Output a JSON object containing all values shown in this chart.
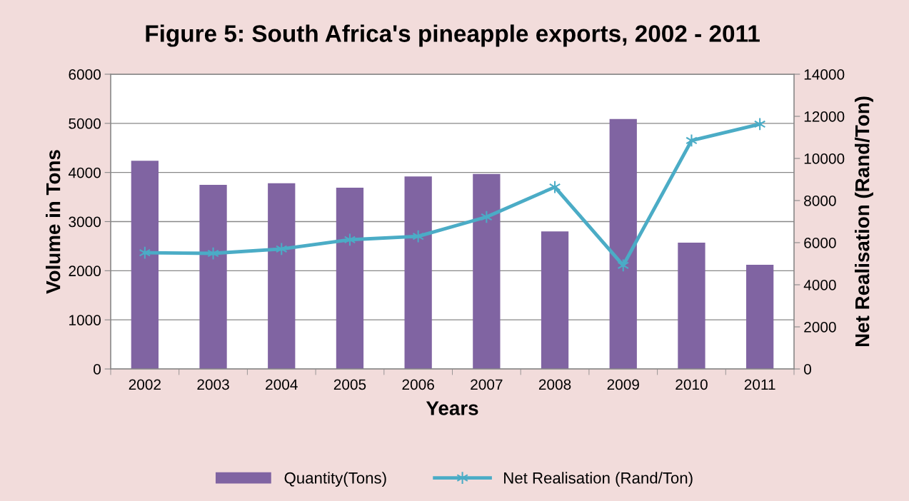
{
  "chart_data": {
    "type": "bar",
    "title": "Figure 5: South Africa's pineapple exports, 2002 - 2011",
    "xlabel": "Years",
    "ylabel": "Volume in Tons",
    "y2label": "Net Realisation (Rand/Ton)",
    "categories": [
      "2002",
      "2003",
      "2004",
      "2005",
      "2006",
      "2007",
      "2008",
      "2009",
      "2010",
      "2011"
    ],
    "series": [
      {
        "name": "Quantity(Tons)",
        "color": "#8064a2",
        "values": [
          4240,
          3750,
          3780,
          3690,
          3920,
          3970,
          2800,
          5090,
          2570,
          2120
        ]
      },
      {
        "name": "Net Realisation (Rand/Ton)",
        "type": "line",
        "axis": "y2",
        "color": "#4bacc6",
        "marker": "cross",
        "values": [
          5520,
          5490,
          5700,
          6140,
          6300,
          7220,
          8640,
          4920,
          10850,
          11630
        ]
      }
    ],
    "ylim": [
      0,
      6000
    ],
    "yticks": [
      0,
      1000,
      2000,
      3000,
      4000,
      5000,
      6000
    ],
    "y2lim": [
      0,
      14000
    ],
    "y2ticks": [
      0,
      2000,
      4000,
      6000,
      8000,
      10000,
      12000,
      14000
    ],
    "grid": "y",
    "legend": "bottom"
  }
}
